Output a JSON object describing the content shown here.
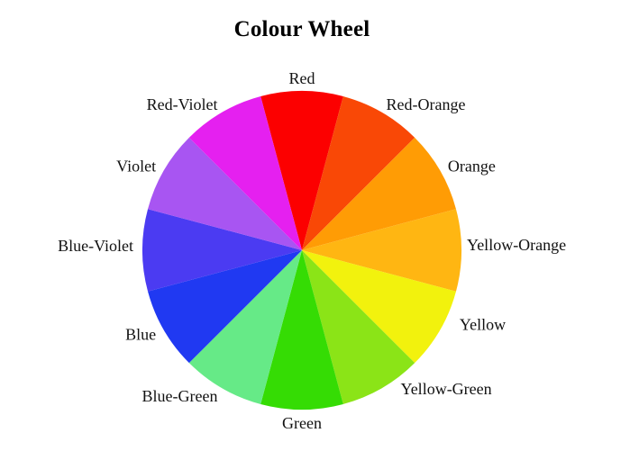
{
  "title": "Colour Wheel",
  "chart_data": {
    "type": "pie",
    "title": "Colour Wheel",
    "legend_position": "labels-around-wheel",
    "start_angle_deg": -15,
    "direction": "clockwise",
    "background": "#ffffff",
    "label_color": "#111111",
    "segments": [
      {
        "label": "Red",
        "color": "#FC0000",
        "value": 30
      },
      {
        "label": "Red-Orange",
        "color": "#F94806",
        "value": 30
      },
      {
        "label": "Orange",
        "color": "#FF9C05",
        "value": 30
      },
      {
        "label": "Yellow-Orange",
        "color": "#FFB612",
        "value": 30
      },
      {
        "label": "Yellow",
        "color": "#F2F20D",
        "value": 30
      },
      {
        "label": "Yellow-Green",
        "color": "#8BE417",
        "value": 30
      },
      {
        "label": "Green",
        "color": "#35DC04",
        "value": 30
      },
      {
        "label": "Blue-Green",
        "color": "#66EA87",
        "value": 30
      },
      {
        "label": "Blue",
        "color": "#2039F2",
        "value": 30
      },
      {
        "label": "Blue-Violet",
        "color": "#4B3BF2",
        "value": 30
      },
      {
        "label": "Violet",
        "color": "#A855F2",
        "value": 30
      },
      {
        "label": "Red-Violet",
        "color": "#E520F0",
        "value": 30
      }
    ]
  }
}
